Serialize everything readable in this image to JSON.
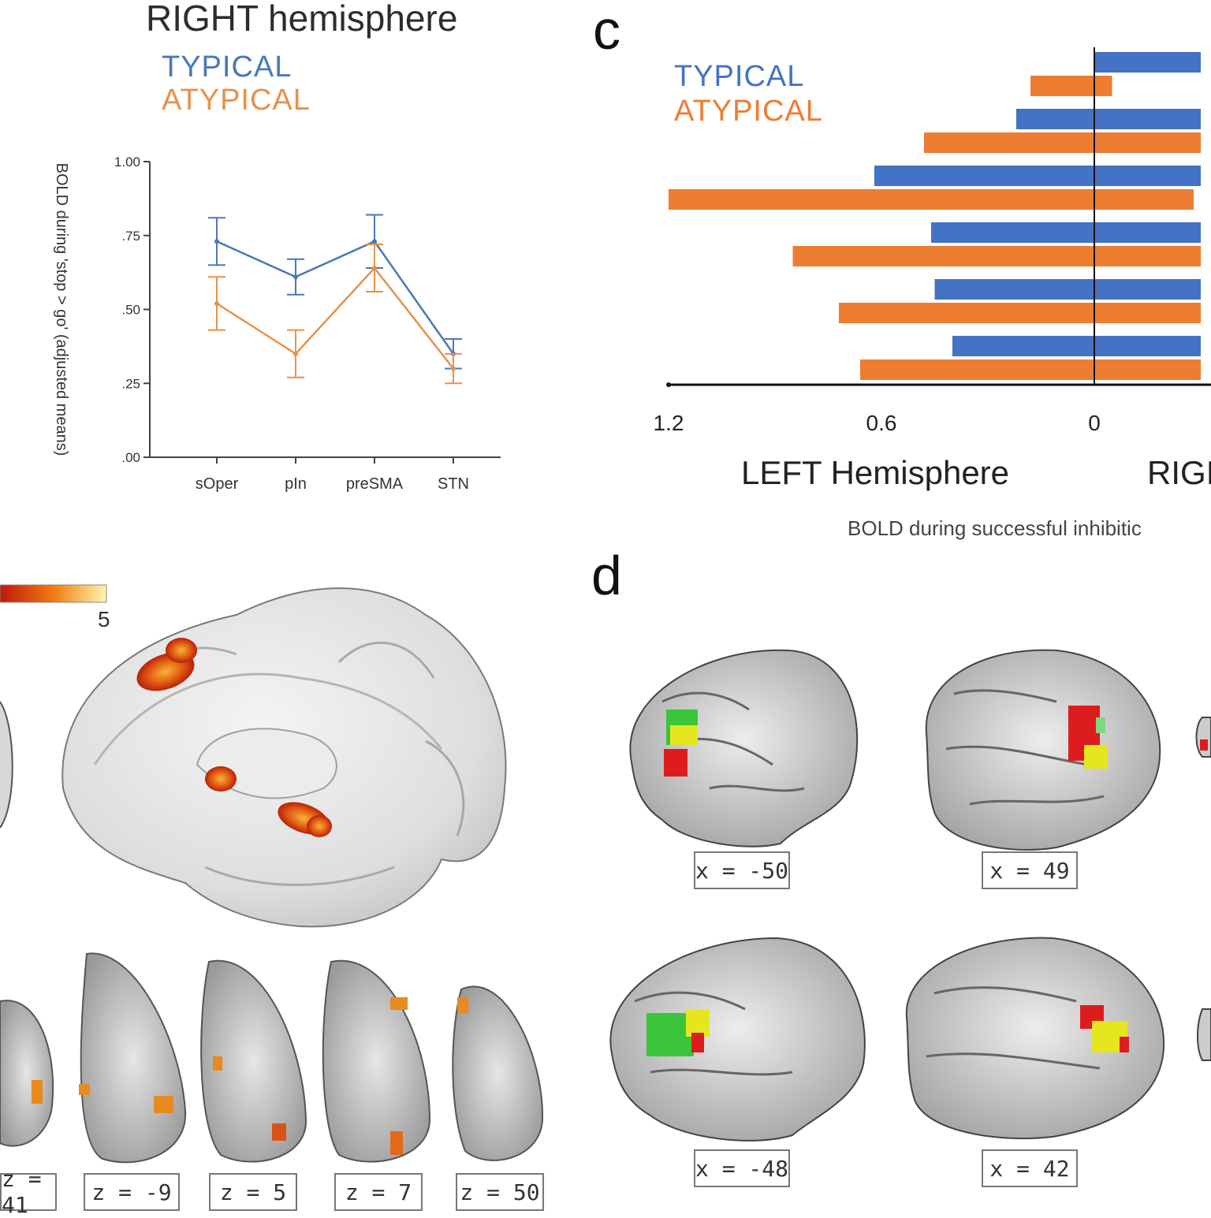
{
  "panel_b": {
    "title": "RIGHT hemisphere",
    "legend": [
      {
        "label": "TYPICAL",
        "color": "#4a78b8"
      },
      {
        "label": "ATYPICAL",
        "color": "#e8914a"
      }
    ]
  },
  "panel_c": {
    "letter": "c",
    "legend": [
      {
        "label": "TYPICAL",
        "color": "#4472c4"
      },
      {
        "label": "ATYPICAL",
        "color": "#ed7d31"
      }
    ],
    "left_label": "LEFT Hemisphere",
    "right_label": "RIGI",
    "caption": "BOLD during successful inhibitic"
  },
  "panel_d": {
    "letter": "d",
    "slice_labels": [
      "x = -50",
      "x = 49",
      "x = -48",
      "x = 42"
    ]
  },
  "panel_brain": {
    "colorbar_max": "5",
    "slice_labels": [
      "z = 41",
      "z = -9",
      "z = 5",
      "z = 7",
      "z = 50"
    ]
  },
  "chart_data": [
    {
      "type": "line",
      "title": "RIGHT hemisphere",
      "ylabel": "BOLD during 'stop > go' (adjusted means)",
      "categories": [
        "sOper",
        "pIn",
        "preSMA",
        "STN"
      ],
      "ytick_labels": [
        "1.00",
        ".75",
        ".50",
        ".25",
        ".00"
      ],
      "ylim": [
        0,
        1.0
      ],
      "series": [
        {
          "name": "TYPICAL",
          "color": "#4a78b8",
          "values": [
            0.73,
            0.61,
            0.73,
            0.35
          ],
          "errors": [
            0.08,
            0.06,
            0.09,
            0.05
          ]
        },
        {
          "name": "ATYPICAL",
          "color": "#e8914a",
          "values": [
            0.52,
            0.35,
            0.64,
            0.3
          ],
          "errors": [
            0.09,
            0.08,
            0.08,
            0.05
          ]
        }
      ]
    },
    {
      "type": "bar",
      "orientation": "horizontal",
      "x_tick_labels": [
        "1.2",
        "0.6",
        "0"
      ],
      "xlim": [
        -1.2,
        0.3
      ],
      "series": [
        {
          "name": "TYPICAL",
          "color": "#4472c4",
          "values": [
            [
              0,
              0.3
            ],
            [
              -0.22,
              0.3
            ],
            [
              -0.62,
              0.3
            ],
            [
              -0.46,
              0.3
            ],
            [
              -0.45,
              0.3
            ],
            [
              -0.4,
              0.3
            ]
          ]
        },
        {
          "name": "ATYPICAL",
          "color": "#ed7d31",
          "values": [
            [
              -0.18,
              0.05
            ],
            [
              -0.48,
              0.3
            ],
            [
              -1.2,
              0.28
            ],
            [
              -0.85,
              0.3
            ],
            [
              -0.72,
              0.3
            ],
            [
              -0.66,
              0.3
            ]
          ]
        }
      ]
    }
  ]
}
